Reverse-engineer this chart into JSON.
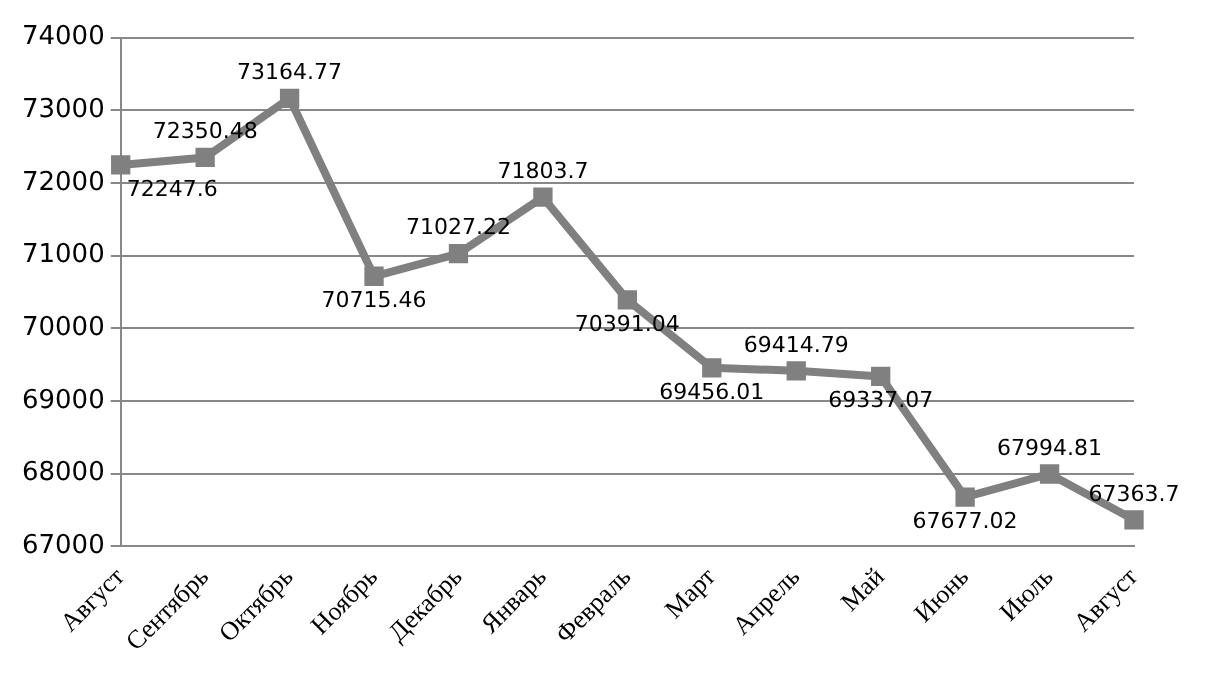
{
  "chart_data": {
    "type": "line",
    "categories": [
      "Август",
      "Сентябрь",
      "Октябрь",
      "Ноябрь",
      "Декабрь",
      "Январь",
      "Февраль",
      "Март",
      "Апрель",
      "Май",
      "Июнь",
      "Июль",
      "Август"
    ],
    "series": [
      {
        "color": "#808080",
        "values": [
          72247.6,
          72350.48,
          73164.77,
          70715.46,
          71027.22,
          71803.7,
          70391.04,
          69456.01,
          69414.79,
          69337.07,
          67677.02,
          67994.81,
          67363.7
        ]
      }
    ],
    "ylim": [
      67000,
      74000
    ],
    "yticks": [
      67000,
      68000,
      69000,
      70000,
      71000,
      72000,
      73000,
      74000
    ],
    "grid": "y",
    "legend": false,
    "marker": "square",
    "line_style": "solid",
    "data_labels": true
  }
}
